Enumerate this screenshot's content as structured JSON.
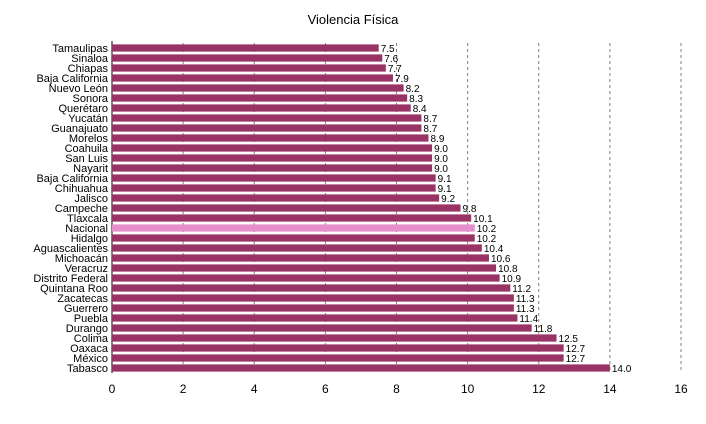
{
  "chart_data": {
    "type": "bar",
    "orientation": "horizontal",
    "title": "Violencia Física",
    "xlabel": "",
    "ylabel": "",
    "xlim": [
      0,
      16
    ],
    "xticks": [
      0,
      2,
      4,
      6,
      8,
      10,
      12,
      14,
      16
    ],
    "grid": "vertical dashed",
    "legend": "none",
    "colors": {
      "bar": "#993366",
      "highlight": "#e48ecc",
      "grid": "#808080"
    },
    "highlight_category": "Nacional",
    "categories": [
      "Tamaulipas",
      "Sinaloa",
      "Chiapas",
      "Baja California",
      "Nuevo León",
      "Sonora",
      "Querétaro",
      "Yucatán",
      "Guanajuato",
      "Morelos",
      "Coahuila",
      "San Luis",
      "Nayarit",
      "Baja California",
      "Chihuahua",
      "Jalisco",
      "Campeche",
      "Tlaxcala",
      "Nacional",
      "Hidalgo",
      "Aguascalientes",
      "Michoacán",
      "Veracruz",
      "Distrito Federal",
      "Quintana Roo",
      "Zacatecas",
      "Guerrero",
      "Puebla",
      "Durango",
      "Colima",
      "Oaxaca",
      "México",
      "Tabasco"
    ],
    "values": [
      7.5,
      7.6,
      7.7,
      7.9,
      8.2,
      8.3,
      8.4,
      8.7,
      8.7,
      8.9,
      9.0,
      9.0,
      9.0,
      9.1,
      9.1,
      9.2,
      9.8,
      10.1,
      10.2,
      10.2,
      10.4,
      10.6,
      10.8,
      10.9,
      11.2,
      11.3,
      11.3,
      11.4,
      11.8,
      12.5,
      12.7,
      12.7,
      14.0
    ],
    "value_labels": [
      "7.5",
      "7.6",
      "7.7",
      "7.9",
      "8.2",
      "8.3",
      "8.4",
      "8.7",
      "8.7",
      "8.9",
      "9.0",
      "9.0",
      "9.0",
      "9.1",
      "9.1",
      "9.2",
      "9.8",
      "10.1",
      "10.2",
      "10.2",
      "10.4",
      "10.6",
      "10.8",
      "10.9",
      "11.2",
      "11.3",
      "11.3",
      "11.4",
      "11.8",
      "12.5",
      "12.7",
      "12.7",
      "14.0"
    ]
  }
}
